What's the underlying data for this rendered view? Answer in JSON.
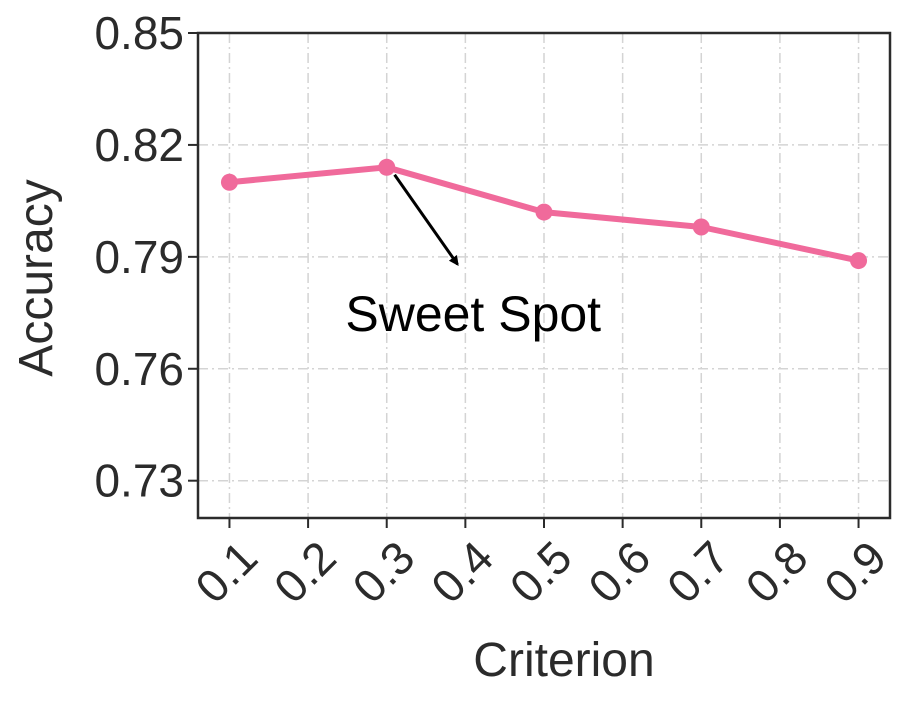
{
  "chart_data": {
    "type": "line",
    "xlabel": "Criterion",
    "ylabel": "Accuracy",
    "x_ticks": [
      "0.1",
      "0.2",
      "0.3",
      "0.4",
      "0.5",
      "0.6",
      "0.7",
      "0.8",
      "0.9"
    ],
    "y_ticks": [
      "0.73",
      "0.76",
      "0.79",
      "0.82",
      "0.85"
    ],
    "xlim": [
      0.06,
      0.94
    ],
    "ylim": [
      0.72,
      0.85
    ],
    "grid": true,
    "series": [
      {
        "x": [
          0.1,
          0.3,
          0.5,
          0.7,
          0.9
        ],
        "y": [
          0.81,
          0.814,
          0.802,
          0.798,
          0.789
        ],
        "color": "#f06a9b",
        "marker": "circle"
      }
    ],
    "annotations": [
      {
        "text": "Sweet Spot",
        "points_to": {
          "x": 0.3,
          "y": 0.814
        },
        "arrow_tail": {
          "x": 0.31,
          "y": 0.812
        },
        "arrow_head": {
          "x": 0.39,
          "y": 0.788
        },
        "text_anchor_point": {
          "x": 0.41,
          "y": 0.775
        }
      }
    ]
  }
}
